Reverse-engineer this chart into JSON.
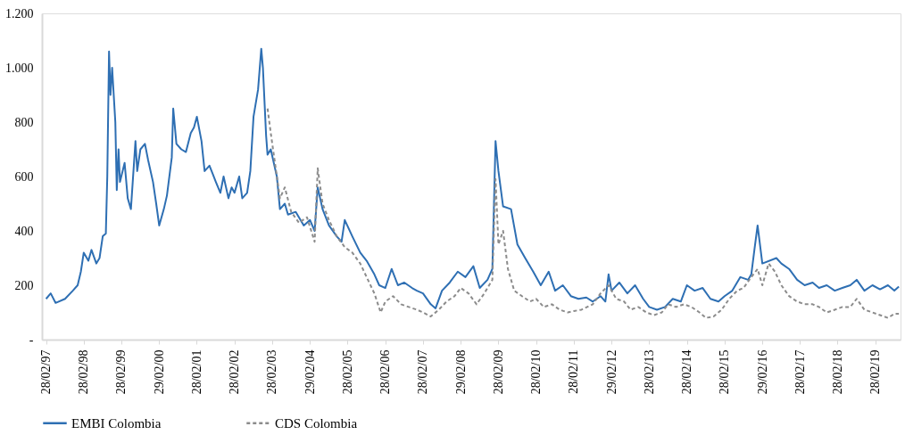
{
  "chart_data": {
    "type": "line",
    "xlim": [
      "1997-01-20",
      "2019-10-31"
    ],
    "xticks": [
      {
        "value": "1997-02-28",
        "label": "28/02/97"
      },
      {
        "value": "1998-02-28",
        "label": "28/02/98"
      },
      {
        "value": "1999-02-28",
        "label": "28/02/99"
      },
      {
        "value": "2000-02-29",
        "label": "29/02/00"
      },
      {
        "value": "2001-02-28",
        "label": "28/02/01"
      },
      {
        "value": "2002-02-28",
        "label": "28/02/02"
      },
      {
        "value": "2003-02-28",
        "label": "28/02/03"
      },
      {
        "value": "2004-02-29",
        "label": "29/02/04"
      },
      {
        "value": "2005-02-28",
        "label": "28/02/05"
      },
      {
        "value": "2006-02-28",
        "label": "28/02/06"
      },
      {
        "value": "2007-02-28",
        "label": "28/02/07"
      },
      {
        "value": "2008-02-29",
        "label": "29/02/08"
      },
      {
        "value": "2009-02-28",
        "label": "28/02/09"
      },
      {
        "value": "2010-02-28",
        "label": "28/02/10"
      },
      {
        "value": "2011-02-28",
        "label": "28/02/11"
      },
      {
        "value": "2012-02-29",
        "label": "29/02/12"
      },
      {
        "value": "2013-02-28",
        "label": "28/02/13"
      },
      {
        "value": "2014-02-28",
        "label": "28/02/14"
      },
      {
        "value": "2015-02-28",
        "label": "28/02/15"
      },
      {
        "value": "2016-02-29",
        "label": "29/02/16"
      },
      {
        "value": "2017-02-28",
        "label": "28/02/17"
      },
      {
        "value": "2018-02-28",
        "label": "28/02/18"
      },
      {
        "value": "2019-02-28",
        "label": "28/02/19"
      }
    ],
    "ylim": [
      0,
      1200
    ],
    "yticks": [
      {
        "value": 0,
        "label": "-"
      },
      200,
      400,
      600,
      800,
      {
        "value": 1000,
        "label": "1.000"
      },
      {
        "value": 1200,
        "label": "1.200"
      }
    ],
    "grid": false,
    "legend": "bottom",
    "series": [
      {
        "name": "EMBI Colombia",
        "color": "#2e6fb3",
        "line_style": "solid",
        "x": [
          "1997-03-01",
          "1997-04-15",
          "1997-06-01",
          "1997-09-01",
          "1997-11-15",
          "1998-01-01",
          "1998-02-01",
          "1998-03-01",
          "1998-04-15",
          "1998-05-15",
          "1998-07-01",
          "1998-08-01",
          "1998-09-01",
          "1998-10-01",
          "1998-10-15",
          "1998-11-01",
          "1998-11-15",
          "1998-12-01",
          "1999-01-01",
          "1999-01-15",
          "1999-02-01",
          "1999-02-15",
          "1999-04-01",
          "1999-05-01",
          "1999-06-01",
          "1999-07-15",
          "1999-08-01",
          "1999-09-01",
          "1999-10-15",
          "1999-11-15",
          "2000-01-01",
          "2000-02-01",
          "2000-03-01",
          "2000-04-15",
          "2000-05-15",
          "2000-07-01",
          "2000-07-15",
          "2000-08-15",
          "2000-10-01",
          "2000-11-15",
          "2001-01-01",
          "2001-02-01",
          "2001-03-01",
          "2001-04-15",
          "2001-05-15",
          "2001-07-01",
          "2001-08-01",
          "2001-09-01",
          "2001-10-15",
          "2001-11-15",
          "2002-01-01",
          "2002-02-01",
          "2002-03-01",
          "2002-04-15",
          "2002-05-15",
          "2002-07-01",
          "2002-08-01",
          "2002-09-01",
          "2002-10-15",
          "2002-11-15",
          "2002-12-01",
          "2003-01-01",
          "2003-01-15",
          "2003-02-15",
          "2003-04-15",
          "2003-05-15",
          "2003-07-01",
          "2003-08-01",
          "2003-10-15",
          "2004-01-01",
          "2004-03-01",
          "2004-04-15",
          "2004-05-15",
          "2004-07-01",
          "2004-09-01",
          "2004-11-15",
          "2005-01-01",
          "2005-02-01",
          "2005-04-15",
          "2005-07-01",
          "2005-09-01",
          "2005-11-15",
          "2006-01-01",
          "2006-03-01",
          "2006-05-01",
          "2006-07-01",
          "2006-09-01",
          "2006-11-15",
          "2007-01-01",
          "2007-03-01",
          "2007-05-15",
          "2007-07-01",
          "2007-09-01",
          "2007-11-15",
          "2008-02-01",
          "2008-04-15",
          "2008-07-01",
          "2008-09-01",
          "2008-11-15",
          "2009-01-01",
          "2009-02-01",
          "2009-03-01",
          "2009-04-15",
          "2009-07-01",
          "2009-09-01",
          "2009-11-15",
          "2010-02-01",
          "2010-04-15",
          "2010-07-01",
          "2010-09-01",
          "2010-11-15",
          "2011-02-01",
          "2011-04-15",
          "2011-07-01",
          "2011-09-01",
          "2011-11-15",
          "2012-01-01",
          "2012-02-01",
          "2012-03-01",
          "2012-05-15",
          "2012-08-01",
          "2012-10-15",
          "2013-01-01",
          "2013-03-01",
          "2013-05-15",
          "2013-08-01",
          "2013-10-15",
          "2014-01-01",
          "2014-03-01",
          "2014-05-15",
          "2014-08-01",
          "2014-10-15",
          "2015-01-01",
          "2015-03-01",
          "2015-05-15",
          "2015-08-01",
          "2015-10-15",
          "2015-11-15",
          "2015-12-15",
          "2016-01-15",
          "2016-03-01",
          "2016-07-15",
          "2016-09-01",
          "2016-11-15",
          "2017-02-01",
          "2017-04-15",
          "2017-07-01",
          "2017-09-01",
          "2017-11-15",
          "2018-02-01",
          "2018-04-15",
          "2018-07-01",
          "2018-09-01",
          "2018-11-15",
          "2019-02-01",
          "2019-04-15",
          "2019-07-01",
          "2019-09-01",
          "2019-10-15"
        ],
        "values": [
          150,
          170,
          135,
          150,
          180,
          200,
          250,
          320,
          290,
          330,
          280,
          300,
          380,
          390,
          600,
          1060,
          900,
          1000,
          800,
          550,
          700,
          580,
          650,
          520,
          480,
          730,
          620,
          700,
          720,
          660,
          580,
          500,
          420,
          480,
          530,
          670,
          850,
          720,
          700,
          690,
          760,
          780,
          820,
          730,
          620,
          640,
          610,
          580,
          540,
          600,
          520,
          560,
          540,
          600,
          520,
          540,
          620,
          820,
          920,
          1070,
          1000,
          750,
          680,
          700,
          600,
          480,
          500,
          460,
          470,
          420,
          440,
          400,
          560,
          480,
          420,
          380,
          360,
          440,
          380,
          320,
          290,
          240,
          200,
          190,
          260,
          200,
          210,
          190,
          180,
          170,
          130,
          115,
          180,
          210,
          250,
          230,
          270,
          190,
          220,
          260,
          730,
          620,
          490,
          480,
          350,
          300,
          250,
          200,
          250,
          180,
          200,
          160,
          150,
          155,
          140,
          160,
          140,
          240,
          180,
          210,
          170,
          200,
          150,
          120,
          110,
          120,
          150,
          140,
          200,
          180,
          190,
          150,
          140,
          160,
          180,
          230,
          220,
          240,
          330,
          420,
          280,
          300,
          280,
          260,
          220,
          200,
          210,
          190,
          200,
          180,
          190,
          200,
          220,
          180,
          200,
          185,
          200,
          180,
          195
        ]
      },
      {
        "name": "CDS Colombia",
        "color": "#8c8c8c",
        "line_style": "dashed",
        "x": [
          "2003-01-15",
          "2003-02-15",
          "2003-04-15",
          "2003-05-15",
          "2003-07-01",
          "2003-09-01",
          "2003-11-15",
          "2004-02-01",
          "2004-04-15",
          "2004-05-15",
          "2004-07-01",
          "2004-09-01",
          "2004-11-15",
          "2005-02-01",
          "2005-04-15",
          "2005-07-01",
          "2005-09-01",
          "2005-11-15",
          "2006-01-15",
          "2006-03-01",
          "2006-05-15",
          "2006-08-01",
          "2006-10-15",
          "2007-01-01",
          "2007-03-01",
          "2007-05-15",
          "2007-08-01",
          "2007-10-15",
          "2008-01-01",
          "2008-03-01",
          "2008-05-15",
          "2008-08-01",
          "2008-10-15",
          "2009-01-01",
          "2009-02-01",
          "2009-03-01",
          "2009-04-15",
          "2009-06-01",
          "2009-08-01",
          "2009-10-15",
          "2010-01-01",
          "2010-03-01",
          "2010-05-15",
          "2010-08-01",
          "2010-10-15",
          "2011-01-01",
          "2011-03-01",
          "2011-05-15",
          "2011-09-01",
          "2011-11-15",
          "2012-02-01",
          "2012-04-15",
          "2012-07-01",
          "2012-09-01",
          "2012-11-15",
          "2013-02-01",
          "2013-04-15",
          "2013-07-01",
          "2013-09-01",
          "2013-11-15",
          "2014-02-01",
          "2014-04-15",
          "2014-07-01",
          "2014-09-01",
          "2014-11-15",
          "2015-02-01",
          "2015-04-15",
          "2015-07-01",
          "2015-09-01",
          "2015-11-15",
          "2016-01-15",
          "2016-03-01",
          "2016-05-01",
          "2016-07-01",
          "2016-09-01",
          "2016-11-15",
          "2017-02-01",
          "2017-04-15",
          "2017-07-01",
          "2017-09-01",
          "2017-11-15",
          "2018-02-01",
          "2018-04-15",
          "2018-07-01",
          "2018-09-01",
          "2018-11-15",
          "2019-02-01",
          "2019-04-15",
          "2019-07-01",
          "2019-09-01",
          "2019-10-15"
        ],
        "values": [
          850,
          760,
          600,
          520,
          560,
          470,
          430,
          450,
          360,
          630,
          500,
          440,
          380,
          340,
          320,
          280,
          230,
          170,
          100,
          140,
          160,
          130,
          120,
          110,
          100,
          85,
          110,
          140,
          160,
          190,
          170,
          130,
          170,
          220,
          590,
          350,
          400,
          260,
          180,
          160,
          140,
          150,
          120,
          130,
          110,
          100,
          105,
          110,
          130,
          170,
          200,
          150,
          140,
          110,
          120,
          100,
          90,
          100,
          130,
          120,
          130,
          120,
          100,
          80,
          85,
          110,
          150,
          180,
          190,
          230,
          260,
          200,
          280,
          250,
          200,
          160,
          140,
          130,
          130,
          120,
          100,
          110,
          120,
          120,
          150,
          110,
          100,
          90,
          80,
          95,
          95
        ]
      }
    ]
  }
}
